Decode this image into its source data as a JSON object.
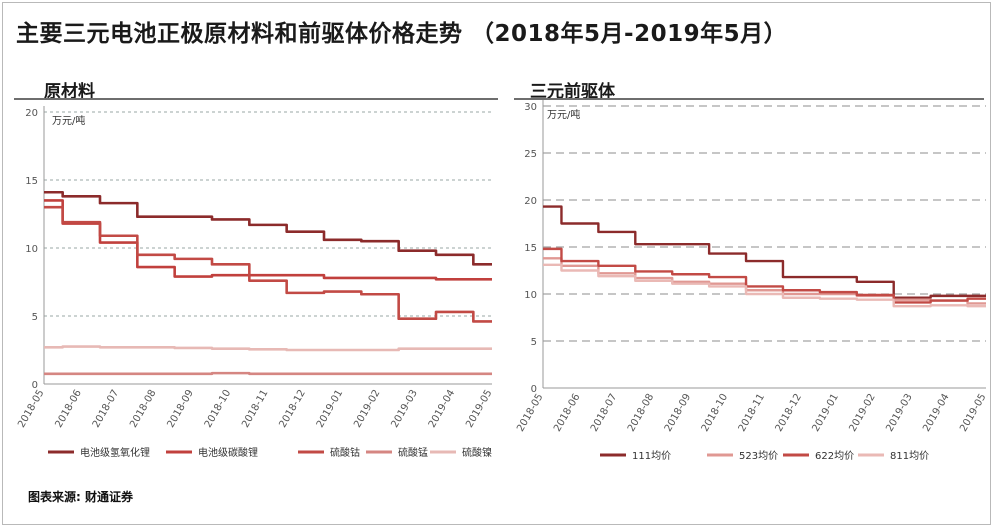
{
  "title": "主要三元电池正极原材料和前驱体价格走势 （2018年5月-2019年5月）",
  "source": "图表来源: 财通证券",
  "colors": {
    "dark": "#8c2b2b",
    "mid": "#c1403d",
    "red": "#c24a45",
    "pink": "#d58682",
    "light": "#e7b9b5"
  },
  "chart_data": [
    {
      "type": "line",
      "title": "原材料",
      "unit": "万元/吨",
      "ylim": [
        0,
        20
      ],
      "yticks": [
        0,
        5,
        10,
        15,
        20
      ],
      "grid": true,
      "legend_position": "bottom",
      "categories": [
        "2018-05",
        "2018-06",
        "2018-07",
        "2018-08",
        "2018-09",
        "2018-10",
        "2018-11",
        "2018-12",
        "2019-01",
        "2019-02",
        "2019-03",
        "2019-04",
        "2019-05"
      ],
      "series": [
        {
          "name": "电池级氢氧化锂",
          "color": "#8c2b2b",
          "values": [
            14.1,
            13.8,
            13.3,
            12.3,
            12.3,
            12.1,
            11.7,
            11.2,
            10.6,
            10.5,
            9.8,
            9.5,
            8.8
          ]
        },
        {
          "name": "电池级碳酸锂",
          "color": "#c1403d",
          "values": [
            13.5,
            11.8,
            10.4,
            8.6,
            7.9,
            8.0,
            8.0,
            8.0,
            7.8,
            7.8,
            7.8,
            7.7,
            7.7
          ]
        },
        {
          "name": "硫酸钴",
          "color": "#c24a45",
          "values": [
            13.0,
            11.9,
            10.9,
            9.5,
            9.2,
            8.8,
            7.6,
            6.7,
            6.8,
            6.6,
            4.8,
            5.3,
            4.6
          ]
        },
        {
          "name": "硫酸锰",
          "color": "#d58682",
          "values": [
            0.75,
            0.75,
            0.75,
            0.75,
            0.75,
            0.8,
            0.75,
            0.75,
            0.75,
            0.75,
            0.75,
            0.75,
            0.75
          ]
        },
        {
          "name": "硫酸镍",
          "color": "#e7b9b5",
          "values": [
            2.7,
            2.75,
            2.7,
            2.7,
            2.65,
            2.6,
            2.55,
            2.5,
            2.5,
            2.5,
            2.6,
            2.6,
            2.6
          ]
        }
      ]
    },
    {
      "type": "line",
      "title": "三元前驱体",
      "unit": "万元/吨",
      "ylim": [
        0,
        30
      ],
      "yticks": [
        0,
        5,
        10,
        15,
        20,
        25,
        30
      ],
      "grid": true,
      "legend_position": "bottom",
      "categories": [
        "2018-05",
        "2018-06",
        "2018-07",
        "2018-08",
        "2018-09",
        "2018-10",
        "2018-11",
        "2018-12",
        "2019-01",
        "2019-02",
        "2019-03",
        "2019-04",
        "2019-05"
      ],
      "series": [
        {
          "name": "111均价",
          "color": "#8c2b2b",
          "values": [
            19.3,
            17.5,
            16.6,
            15.3,
            15.3,
            14.3,
            13.5,
            11.8,
            11.8,
            11.3,
            9.6,
            9.8,
            9.8
          ]
        },
        {
          "name": "523均价",
          "color": "#e09893",
          "values": [
            13.8,
            13.0,
            12.2,
            11.7,
            11.3,
            11.1,
            10.4,
            10.0,
            10.0,
            9.8,
            9.4,
            9.3,
            9.0
          ]
        },
        {
          "name": "622均价",
          "color": "#c24a45",
          "values": [
            14.8,
            13.5,
            13.0,
            12.4,
            12.1,
            11.8,
            10.8,
            10.4,
            10.2,
            9.9,
            9.1,
            9.3,
            9.5
          ]
        },
        {
          "name": "811均价",
          "color": "#eab9b5",
          "values": [
            13.1,
            12.5,
            11.9,
            11.4,
            11.1,
            10.8,
            10.0,
            9.6,
            9.5,
            9.4,
            8.7,
            8.8,
            8.7
          ]
        }
      ]
    }
  ]
}
